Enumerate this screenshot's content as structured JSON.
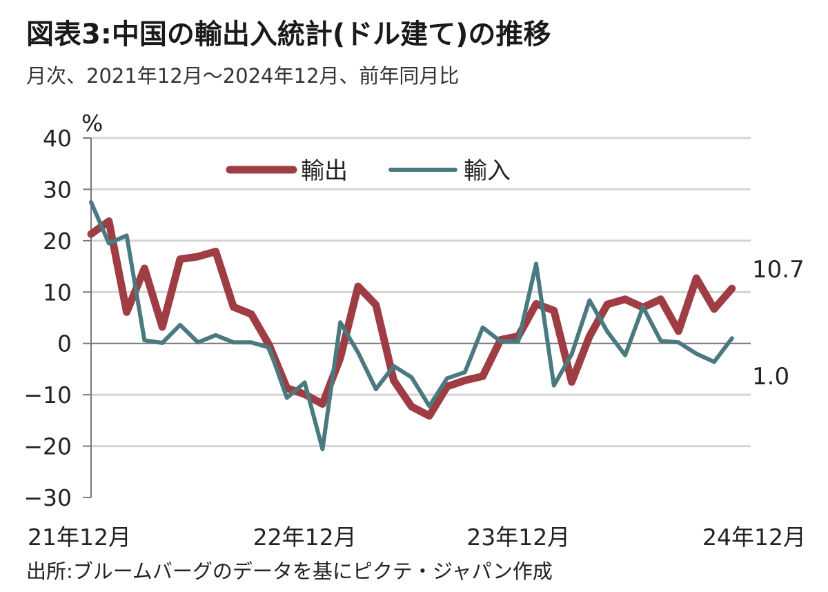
{
  "title": "図表3:中国の輸出入統計(ドル建て)の推移",
  "subtitle": "月次、2021年12月〜2024年12月、前年同月比",
  "source": "出所:ブルームバーグのデータを基にピクテ・ジャパン作成",
  "chart_data": {
    "type": "line",
    "y_unit": "%",
    "ylim": [
      -30,
      40
    ],
    "y_ticks": [
      40,
      30,
      20,
      10,
      0,
      -10,
      -20,
      -30
    ],
    "y_tick_labels": [
      "40",
      "30",
      "20",
      "10",
      "0",
      "−10",
      "−20",
      "−30"
    ],
    "x_tick_labels": [
      "21年12月",
      "22年12月",
      "23年12月",
      "24年12月"
    ],
    "x_tick_indices": [
      0,
      12,
      24,
      36
    ],
    "grid": true,
    "legend_position": "top-center",
    "series": [
      {
        "name": "輸出",
        "color": "#9e3d44",
        "values": [
          21.3,
          23.8,
          6.1,
          14.6,
          3.2,
          16.4,
          16.9,
          17.9,
          7.1,
          5.7,
          -0.3,
          -8.7,
          -9.9,
          -11.8,
          -2.8,
          11.1,
          7.5,
          -7.2,
          -12.3,
          -14.1,
          -8.4,
          -7.2,
          -6.4,
          0.7,
          1.4,
          7.7,
          6.4,
          -7.5,
          1.4,
          7.6,
          8.6,
          7.0,
          8.6,
          2.4,
          12.7,
          6.7,
          10.7
        ],
        "end_label": "10.7"
      },
      {
        "name": "輸入",
        "color": "#4a7a80",
        "values": [
          27.5,
          19.5,
          21.0,
          0.6,
          0.1,
          3.6,
          0.2,
          1.6,
          0.2,
          0.2,
          -0.8,
          -10.6,
          -7.6,
          -20.6,
          4.1,
          -1.8,
          -8.9,
          -4.4,
          -6.6,
          -12.2,
          -6.8,
          -5.6,
          3.1,
          0.4,
          0.4,
          15.5,
          -8.2,
          -2.1,
          8.4,
          2.3,
          -2.3,
          7.1,
          0.5,
          0.2,
          -2.0,
          -3.6,
          1.0
        ],
        "end_label": "1.0"
      }
    ]
  }
}
